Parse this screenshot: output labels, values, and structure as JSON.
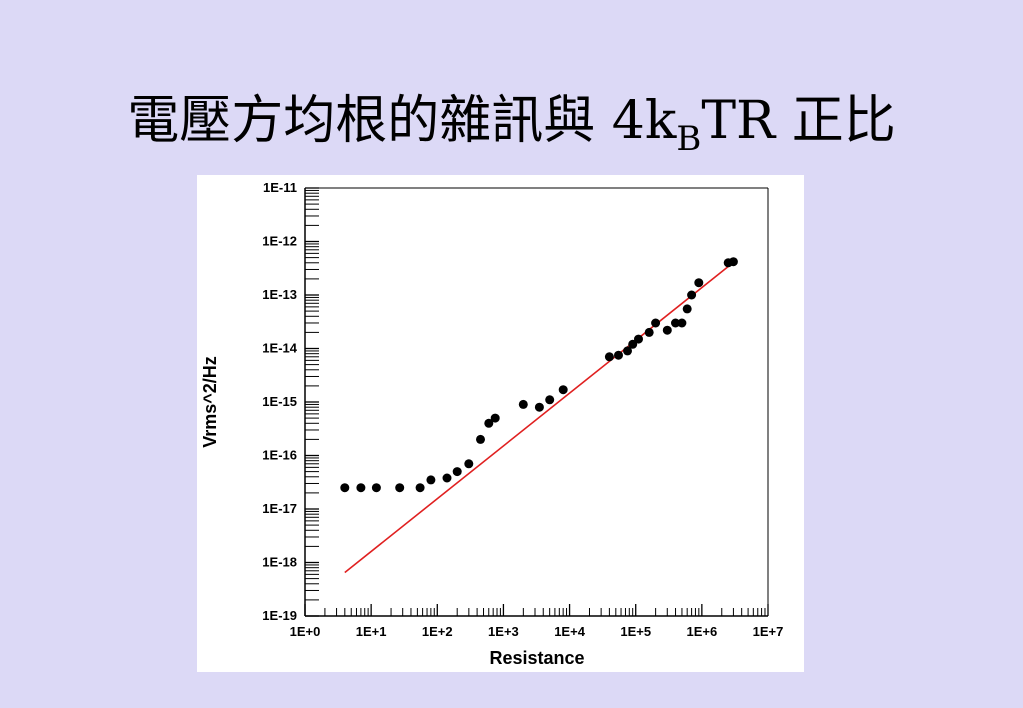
{
  "slide": {
    "title_prefix": "電壓方均根的雜訊與 4k",
    "title_subscript": "B",
    "title_suffix": "TR 正比"
  },
  "chart_data": {
    "type": "scatter",
    "xlabel": "Resistance",
    "ylabel": "Vrms^2/Hz",
    "x_scale": "log",
    "y_scale": "log",
    "xlim": [
      1,
      10000000
    ],
    "ylim": [
      1e-19,
      1e-11
    ],
    "x_tick_labels": [
      "1E+0",
      "1E+1",
      "1E+2",
      "1E+3",
      "1E+4",
      "1E+5",
      "1E+6",
      "1E+7"
    ],
    "y_tick_labels": [
      "1E-19",
      "1E-18",
      "1E-17",
      "1E-16",
      "1E-15",
      "1E-14",
      "1E-13",
      "1E-12",
      "1E-11"
    ],
    "grid": false,
    "series": [
      {
        "type": "scatter",
        "color": "#000000",
        "points": [
          [
            4,
            2.5e-17
          ],
          [
            7,
            2.5e-17
          ],
          [
            12,
            2.5e-17
          ],
          [
            27,
            2.5e-17
          ],
          [
            55,
            2.5e-17
          ],
          [
            80,
            3.5e-17
          ],
          [
            140,
            3.8e-17
          ],
          [
            200,
            5e-17
          ],
          [
            300,
            7e-17
          ],
          [
            450,
            2e-16
          ],
          [
            600,
            4e-16
          ],
          [
            750,
            5e-16
          ],
          [
            2000,
            9e-16
          ],
          [
            3500,
            8e-16
          ],
          [
            5000,
            1.1e-15
          ],
          [
            8000,
            1.7e-15
          ],
          [
            40000,
            7e-15
          ],
          [
            55000,
            7.5e-15
          ],
          [
            75000,
            9e-15
          ],
          [
            90000,
            1.2e-14
          ],
          [
            110000,
            1.5e-14
          ],
          [
            160000,
            2e-14
          ],
          [
            200000,
            3e-14
          ],
          [
            300000,
            2.2e-14
          ],
          [
            400000,
            3e-14
          ],
          [
            500000,
            3e-14
          ],
          [
            600000,
            5.5e-14
          ],
          [
            700000,
            1e-13
          ],
          [
            900000,
            1.7e-13
          ],
          [
            2500000,
            4e-13
          ],
          [
            3000000,
            4.2e-13
          ]
        ]
      },
      {
        "type": "line",
        "color": "#e02020",
        "points": [
          [
            4,
            6.5e-19
          ],
          [
            2800000,
            3.8e-13
          ]
        ]
      }
    ]
  }
}
